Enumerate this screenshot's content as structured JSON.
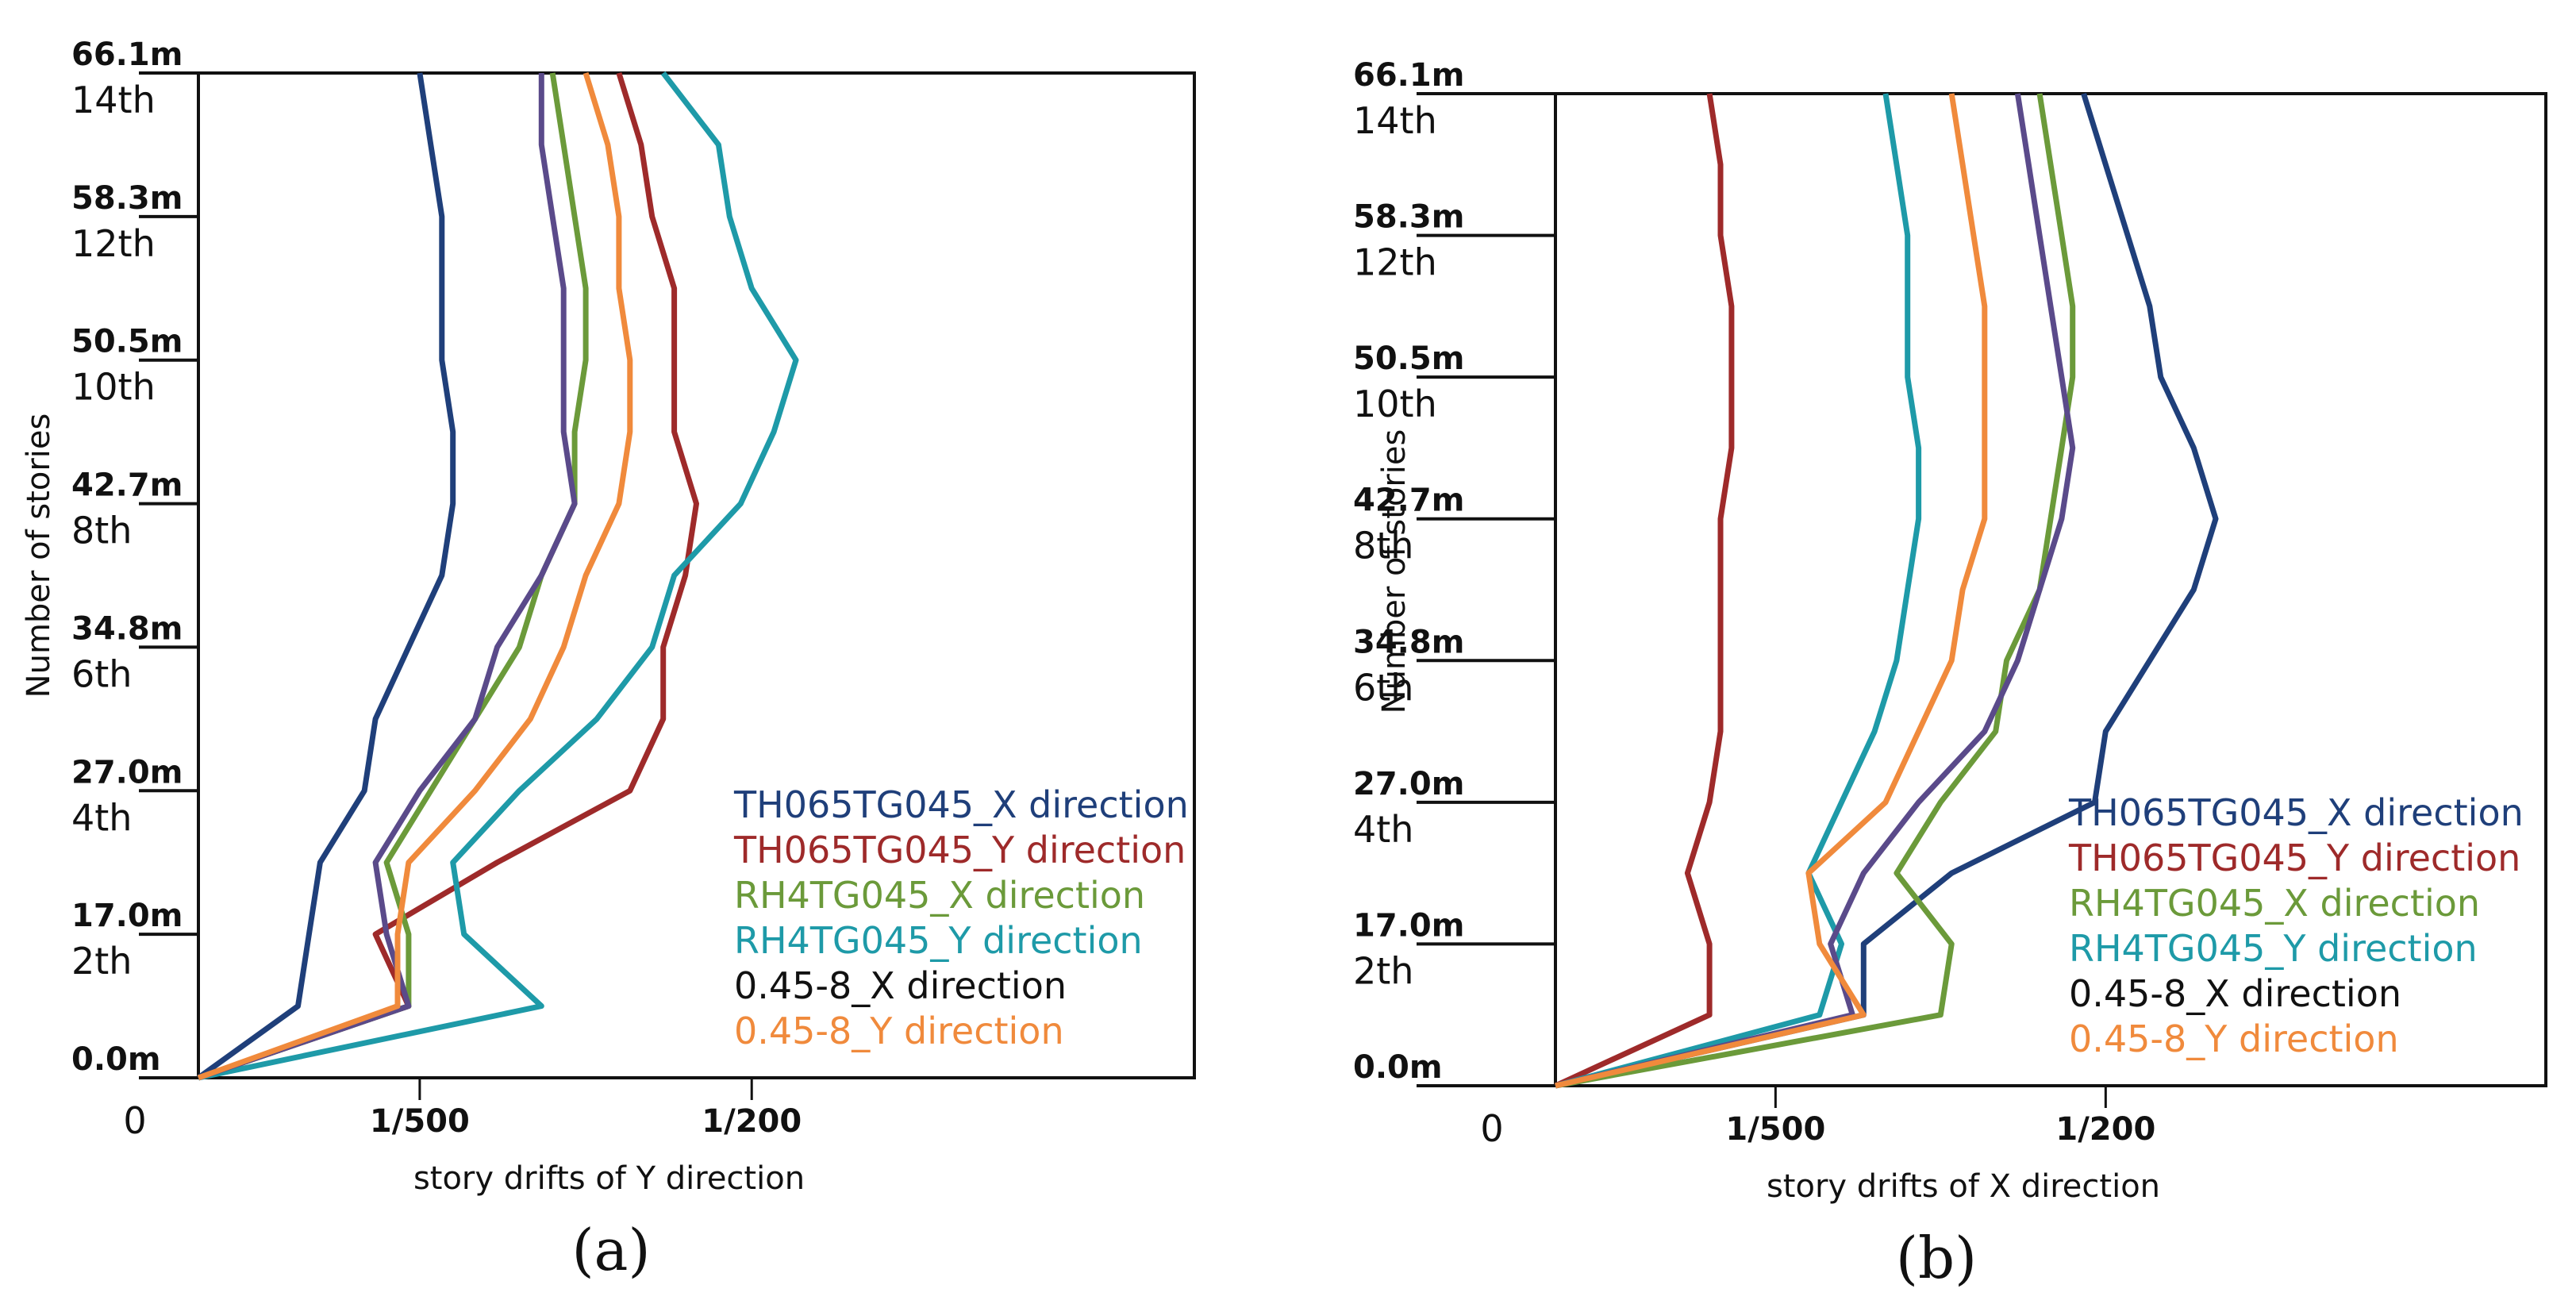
{
  "chart_data": [
    {
      "type": "line",
      "panel_label": "(a)",
      "xlabel": "story drifts of Y direction",
      "ylabel": "Number of stories",
      "x_origin_label": "0",
      "xticks": [
        {
          "value": 0.002,
          "label": "1/500"
        },
        {
          "value": 0.005,
          "label": "1/200"
        }
      ],
      "xlim": [
        0,
        0.009
      ],
      "ylim": [
        0,
        14
      ],
      "story_labels": [
        "2th",
        "4th",
        "6th",
        "8th",
        "10th",
        "12th",
        "14th"
      ],
      "elevation_labels": [
        "0.0m",
        "17.0m",
        "27.0m",
        "34.8m",
        "42.7m",
        "50.5m",
        "58.3m",
        "66.1m"
      ],
      "legend_position": "bottom-right",
      "series": [
        {
          "name": "TH065TG045_X direction",
          "color": "#1f3f7a",
          "points": [
            [
              0.0,
              0
            ],
            [
              0.0009,
              1
            ],
            [
              0.001,
              2
            ],
            [
              0.0011,
              3
            ],
            [
              0.0015,
              4
            ],
            [
              0.0016,
              5
            ],
            [
              0.0019,
              6
            ],
            [
              0.0022,
              7
            ],
            [
              0.0023,
              8
            ],
            [
              0.0023,
              9
            ],
            [
              0.0022,
              10
            ],
            [
              0.0022,
              11
            ],
            [
              0.0022,
              12
            ],
            [
              0.0021,
              13
            ],
            [
              0.002,
              14
            ]
          ]
        },
        {
          "name": "TH065TG045_Y direction",
          "color": "#9e2a2a",
          "points": [
            [
              0.0,
              0
            ],
            [
              0.0019,
              1
            ],
            [
              0.0016,
              2
            ],
            [
              0.0027,
              3
            ],
            [
              0.0039,
              4
            ],
            [
              0.0042,
              5
            ],
            [
              0.0042,
              6
            ],
            [
              0.0044,
              7
            ],
            [
              0.0045,
              8
            ],
            [
              0.0043,
              9
            ],
            [
              0.0043,
              10
            ],
            [
              0.0043,
              11
            ],
            [
              0.0041,
              12
            ],
            [
              0.004,
              13
            ],
            [
              0.0038,
              14
            ]
          ]
        },
        {
          "name": "RH4TG045_X direction",
          "color": "#6b9a3a",
          "points": [
            [
              0.0,
              0
            ],
            [
              0.0019,
              1
            ],
            [
              0.0019,
              2
            ],
            [
              0.0017,
              3
            ],
            [
              0.0021,
              4
            ],
            [
              0.0025,
              5
            ],
            [
              0.0029,
              6
            ],
            [
              0.0031,
              7
            ],
            [
              0.0034,
              8
            ],
            [
              0.0034,
              9
            ],
            [
              0.0035,
              10
            ],
            [
              0.0035,
              11
            ],
            [
              0.0034,
              12
            ],
            [
              0.0033,
              13
            ],
            [
              0.0032,
              14
            ]
          ]
        },
        {
          "name": "RH4TG045_Y direction",
          "color": "#1e9aa8",
          "points": [
            [
              0.0,
              0
            ],
            [
              0.0031,
              1
            ],
            [
              0.0024,
              2
            ],
            [
              0.0023,
              3
            ],
            [
              0.0029,
              4
            ],
            [
              0.0036,
              5
            ],
            [
              0.0041,
              6
            ],
            [
              0.0043,
              7
            ],
            [
              0.0049,
              8
            ],
            [
              0.0052,
              9
            ],
            [
              0.0054,
              10
            ],
            [
              0.005,
              11
            ],
            [
              0.0048,
              12
            ],
            [
              0.0047,
              13
            ],
            [
              0.0042,
              14
            ]
          ]
        },
        {
          "name": "0.45-8_X direction",
          "color": "#5a4a8a",
          "points": [
            [
              0.0,
              0
            ],
            [
              0.0019,
              1
            ],
            [
              0.0017,
              2
            ],
            [
              0.0016,
              3
            ],
            [
              0.002,
              4
            ],
            [
              0.0025,
              5
            ],
            [
              0.0027,
              6
            ],
            [
              0.0031,
              7
            ],
            [
              0.0034,
              8
            ],
            [
              0.0033,
              9
            ],
            [
              0.0033,
              10
            ],
            [
              0.0033,
              11
            ],
            [
              0.0032,
              12
            ],
            [
              0.0031,
              13
            ],
            [
              0.0031,
              14
            ]
          ]
        },
        {
          "name": "0.45-8_Y direction",
          "color": "#f08a3c",
          "points": [
            [
              0.0,
              0
            ],
            [
              0.0018,
              1
            ],
            [
              0.0018,
              2
            ],
            [
              0.0019,
              3
            ],
            [
              0.0025,
              4
            ],
            [
              0.003,
              5
            ],
            [
              0.0033,
              6
            ],
            [
              0.0035,
              7
            ],
            [
              0.0038,
              8
            ],
            [
              0.0039,
              9
            ],
            [
              0.0039,
              10
            ],
            [
              0.0038,
              11
            ],
            [
              0.0038,
              12
            ],
            [
              0.0037,
              13
            ],
            [
              0.0035,
              14
            ]
          ]
        }
      ]
    },
    {
      "type": "line",
      "panel_label": "(b)",
      "xlabel": "story drifts of X direction",
      "ylabel": "Number of stories",
      "x_origin_label": "0",
      "xticks": [
        {
          "value": 0.002,
          "label": "1/500"
        },
        {
          "value": 0.005,
          "label": "1/200"
        }
      ],
      "xlim": [
        0,
        0.009
      ],
      "ylim": [
        0,
        14
      ],
      "story_labels": [
        "2th",
        "4th",
        "6th",
        "8th",
        "10th",
        "12th",
        "14th"
      ],
      "elevation_labels": [
        "0.0m",
        "17.0m",
        "27.0m",
        "34.8m",
        "42.7m",
        "50.5m",
        "58.3m",
        "66.1m"
      ],
      "legend_position": "bottom-right",
      "series": [
        {
          "name": "TH065TG045_X direction",
          "color": "#1f3f7a",
          "points": [
            [
              0.0,
              0
            ],
            [
              0.0028,
              1
            ],
            [
              0.0028,
              2
            ],
            [
              0.0036,
              3
            ],
            [
              0.0049,
              4
            ],
            [
              0.005,
              5
            ],
            [
              0.0054,
              6
            ],
            [
              0.0058,
              7
            ],
            [
              0.006,
              8
            ],
            [
              0.0058,
              9
            ],
            [
              0.0055,
              10
            ],
            [
              0.0054,
              11
            ],
            [
              0.0052,
              12
            ],
            [
              0.005,
              13
            ],
            [
              0.0048,
              14
            ]
          ]
        },
        {
          "name": "TH065TG045_Y direction",
          "color": "#9e2a2a",
          "points": [
            [
              0.0,
              0
            ],
            [
              0.0014,
              1
            ],
            [
              0.0014,
              2
            ],
            [
              0.0012,
              3
            ],
            [
              0.0014,
              4
            ],
            [
              0.0015,
              5
            ],
            [
              0.0015,
              6
            ],
            [
              0.0015,
              7
            ],
            [
              0.0015,
              8
            ],
            [
              0.0016,
              9
            ],
            [
              0.0016,
              10
            ],
            [
              0.0016,
              11
            ],
            [
              0.0015,
              12
            ],
            [
              0.0015,
              13
            ],
            [
              0.0014,
              14
            ]
          ]
        },
        {
          "name": "RH4TG045_X direction",
          "color": "#6b9a3a",
          "points": [
            [
              0.0,
              0
            ],
            [
              0.0035,
              1
            ],
            [
              0.0036,
              2
            ],
            [
              0.0031,
              3
            ],
            [
              0.0035,
              4
            ],
            [
              0.004,
              5
            ],
            [
              0.0041,
              6
            ],
            [
              0.0044,
              7
            ],
            [
              0.0045,
              8
            ],
            [
              0.0046,
              9
            ],
            [
              0.0047,
              10
            ],
            [
              0.0047,
              11
            ],
            [
              0.0046,
              12
            ],
            [
              0.0045,
              13
            ],
            [
              0.0044,
              14
            ]
          ]
        },
        {
          "name": "RH4TG045_Y direction",
          "color": "#1e9aa8",
          "points": [
            [
              0.0,
              0
            ],
            [
              0.0024,
              1
            ],
            [
              0.0026,
              2
            ],
            [
              0.0023,
              3
            ],
            [
              0.0026,
              4
            ],
            [
              0.0029,
              5
            ],
            [
              0.0031,
              6
            ],
            [
              0.0032,
              7
            ],
            [
              0.0033,
              8
            ],
            [
              0.0033,
              9
            ],
            [
              0.0032,
              10
            ],
            [
              0.0032,
              11
            ],
            [
              0.0032,
              12
            ],
            [
              0.0031,
              13
            ],
            [
              0.003,
              14
            ]
          ]
        },
        {
          "name": "0.45-8_X direction",
          "color": "#5a4a8a",
          "points": [
            [
              0.0,
              0
            ],
            [
              0.0027,
              1
            ],
            [
              0.0025,
              2
            ],
            [
              0.0028,
              3
            ],
            [
              0.0033,
              4
            ],
            [
              0.0039,
              5
            ],
            [
              0.0042,
              6
            ],
            [
              0.0044,
              7
            ],
            [
              0.0046,
              8
            ],
            [
              0.0047,
              9
            ],
            [
              0.0046,
              10
            ],
            [
              0.0045,
              11
            ],
            [
              0.0044,
              12
            ],
            [
              0.0043,
              13
            ],
            [
              0.0042,
              14
            ]
          ]
        },
        {
          "name": "0.45-8_Y direction",
          "color": "#f08a3c",
          "points": [
            [
              0.0,
              0
            ],
            [
              0.0028,
              1
            ],
            [
              0.0024,
              2
            ],
            [
              0.0023,
              3
            ],
            [
              0.003,
              4
            ],
            [
              0.0033,
              5
            ],
            [
              0.0036,
              6
            ],
            [
              0.0037,
              7
            ],
            [
              0.0039,
              8
            ],
            [
              0.0039,
              9
            ],
            [
              0.0039,
              10
            ],
            [
              0.0039,
              11
            ],
            [
              0.0038,
              12
            ],
            [
              0.0037,
              13
            ],
            [
              0.0036,
              14
            ]
          ]
        }
      ]
    }
  ]
}
